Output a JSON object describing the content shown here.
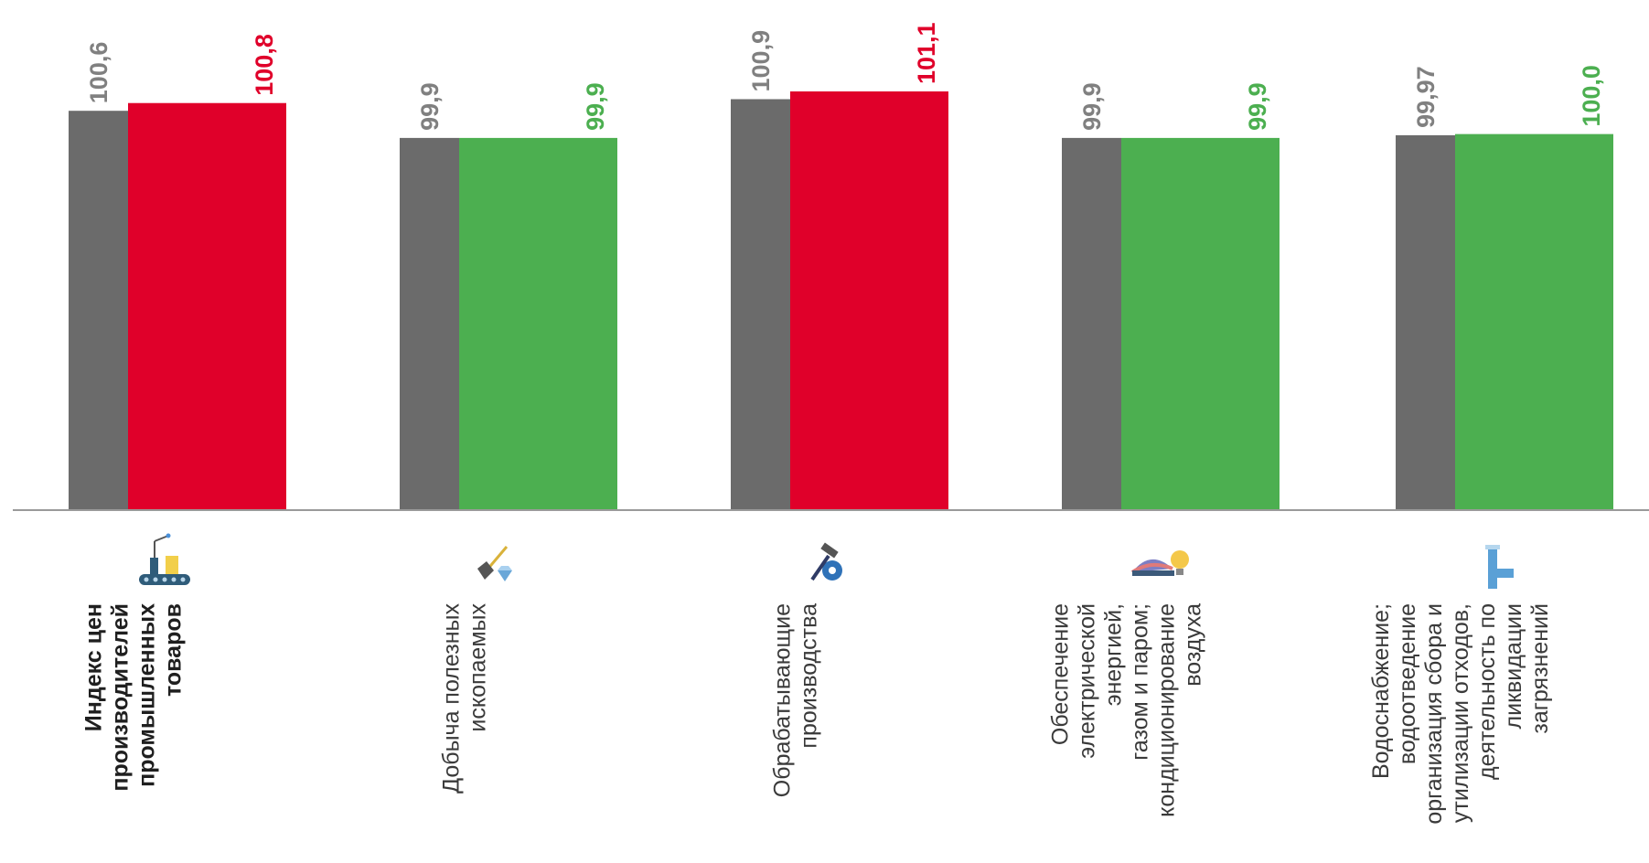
{
  "chart_data": {
    "type": "bar",
    "categories": [
      {
        "lines": [
          "Индекс цен",
          "производителей",
          "промышленных",
          "товаров"
        ],
        "bold": true,
        "icon": "conveyor-robot-arm-icon"
      },
      {
        "lines": [
          "Добыча полезных",
          "ископаемых"
        ],
        "bold": false,
        "icon": "shovel-diamond-icon"
      },
      {
        "lines": [
          "Обрабатывающие",
          "производства"
        ],
        "bold": false,
        "icon": "hammer-gear-icon"
      },
      {
        "lines": [
          "Обеспечение",
          "электрической",
          "энергией,",
          "газом и паром;",
          "кондиционирование",
          "воздуха"
        ],
        "bold": false,
        "icon": "turbine-lightbulb-icon"
      },
      {
        "lines": [
          "Водоснабжение;",
          "водоотведение",
          "организация сбора и",
          "утилизации отходов,",
          "деятельность по",
          "ликвидации",
          "загрязнений"
        ],
        "bold": false,
        "icon": "water-pipe-icon"
      }
    ],
    "series": [
      {
        "values": [
          100.6,
          99.9,
          100.9,
          99.9,
          99.97
        ],
        "labels": [
          "100,6",
          "99,9",
          "100,9",
          "99,9",
          "99,97"
        ],
        "color": "#6b6b6b",
        "label_color": "#808080"
      },
      {
        "values": [
          100.8,
          99.9,
          101.1,
          99.9,
          100.0
        ],
        "labels": [
          "100,8",
          "99,9",
          "101,1",
          "99,9",
          "100,0"
        ],
        "colors": [
          "#e0002a",
          "#4caf50",
          "#e0002a",
          "#4caf50",
          "#4caf50"
        ]
      }
    ],
    "ylim": [
      90.3,
      101.1
    ],
    "grid": false,
    "legend": "none"
  }
}
